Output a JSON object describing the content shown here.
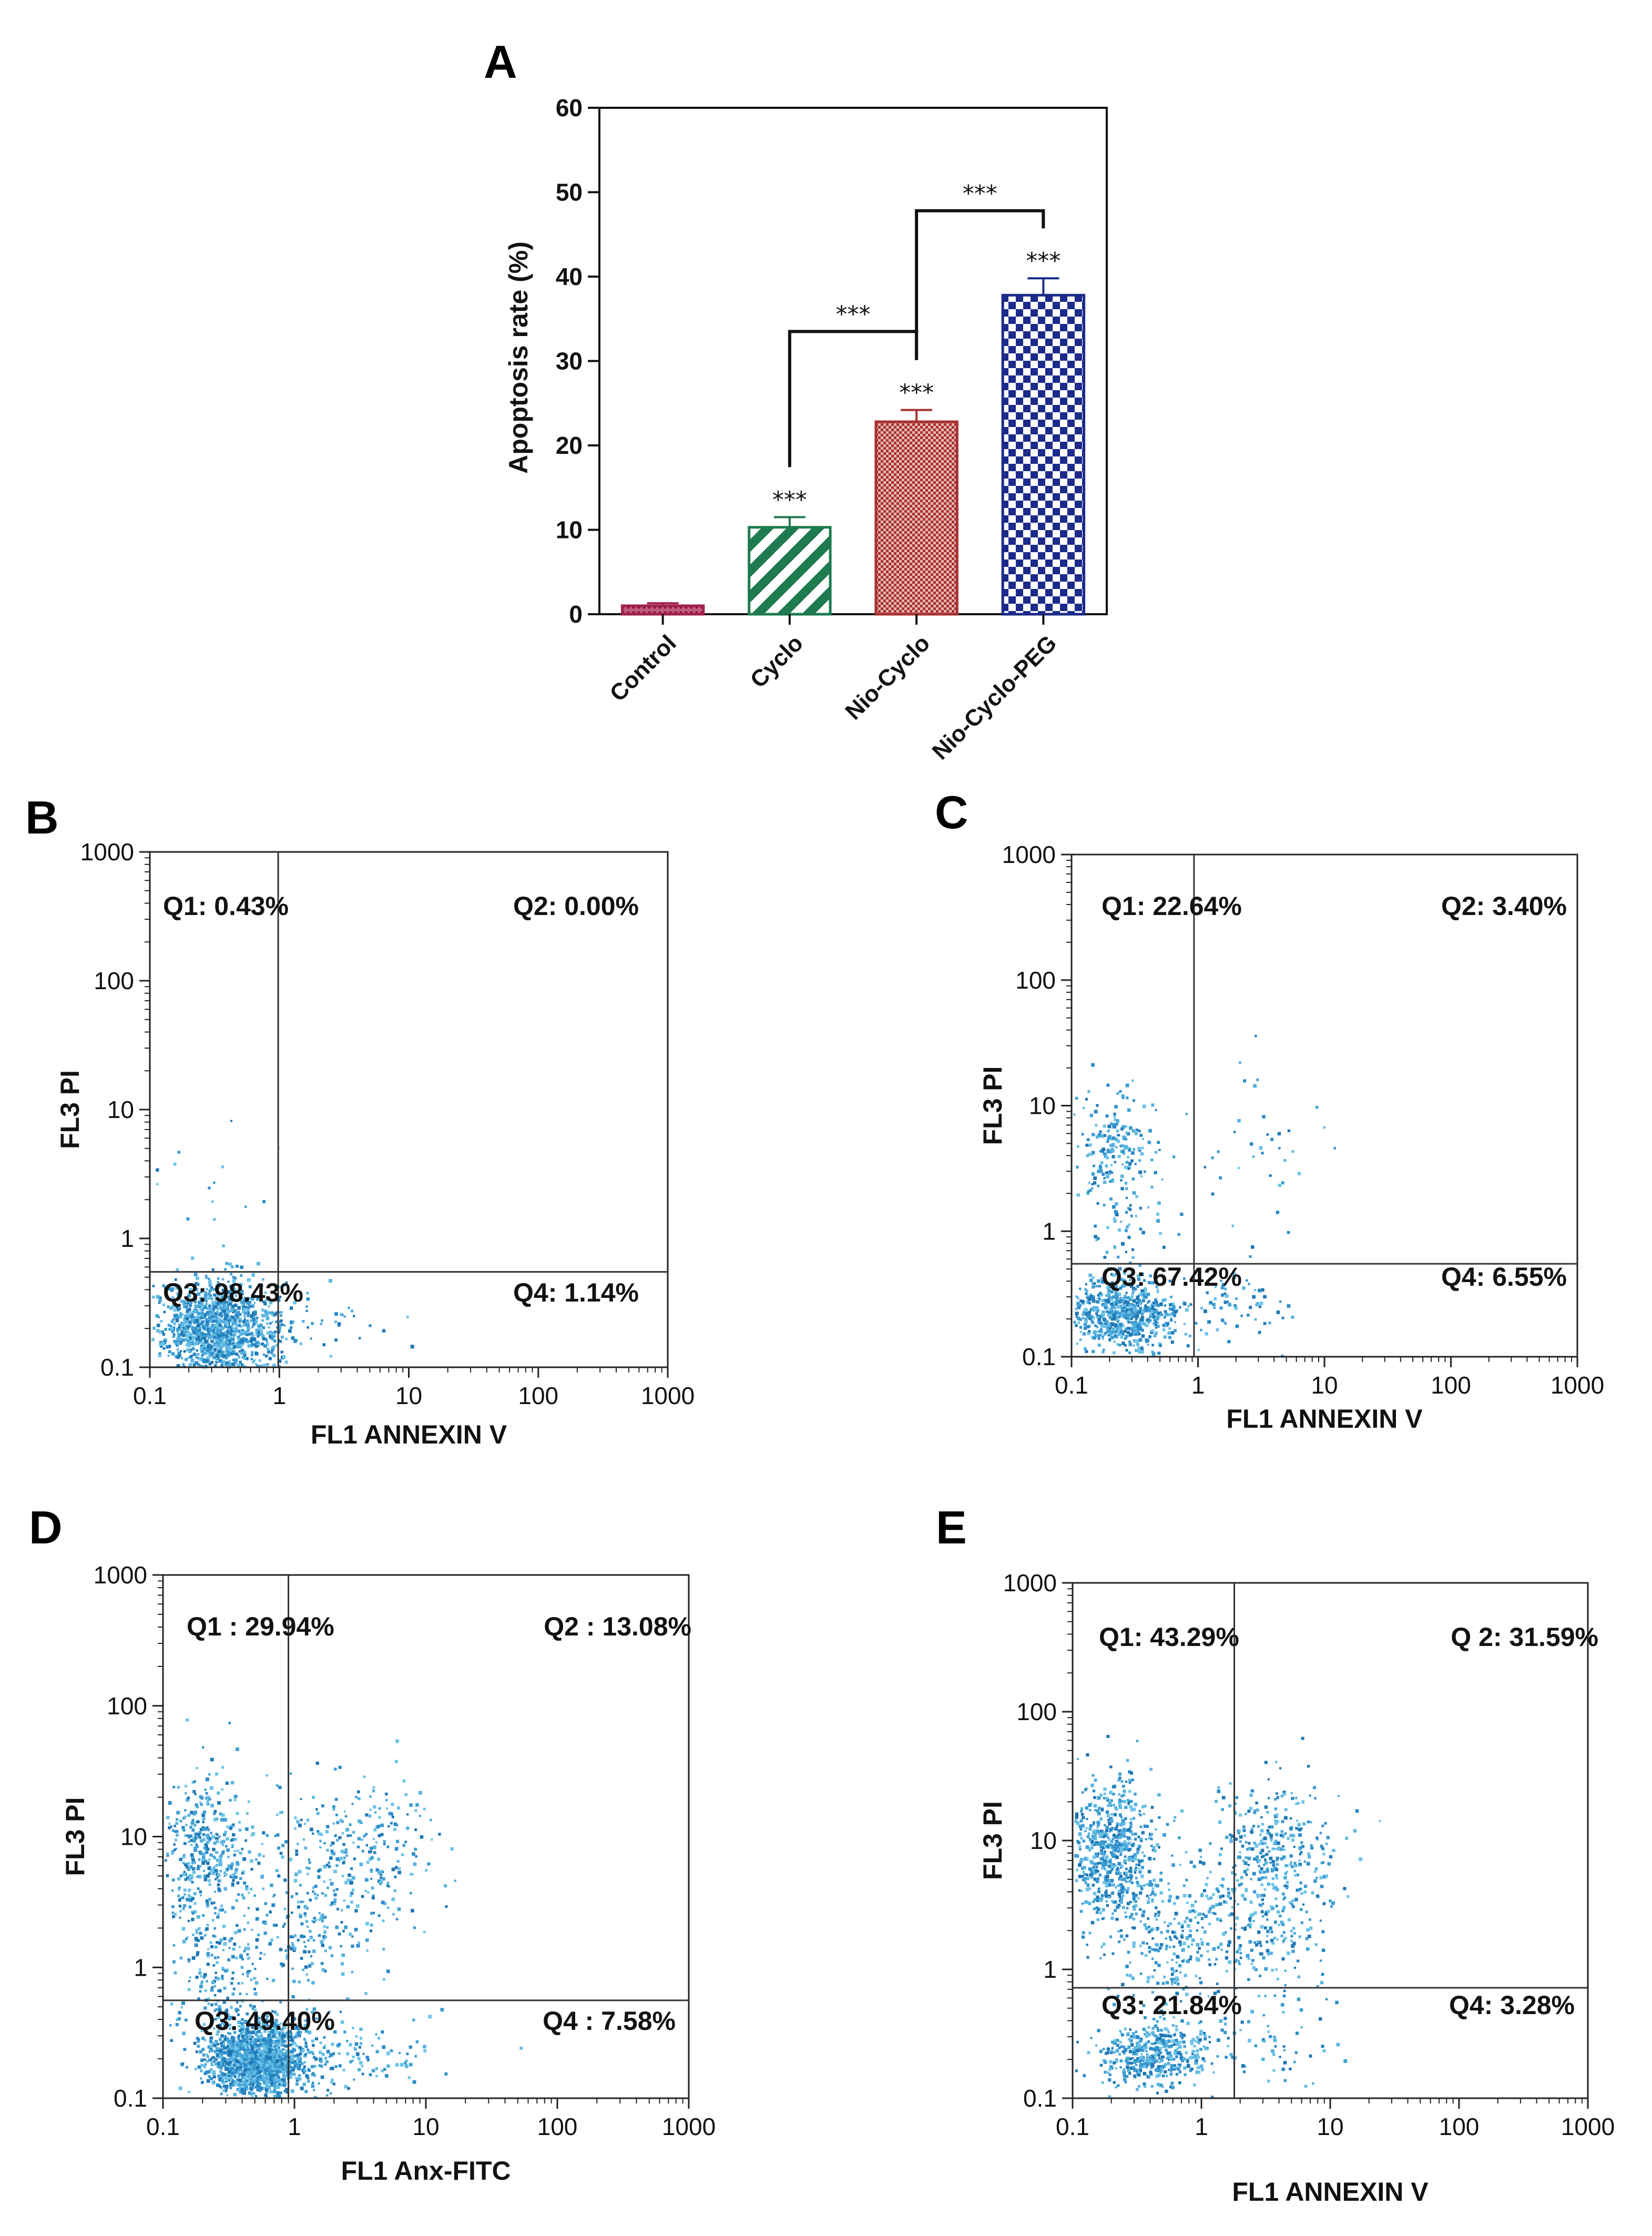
{
  "chart_data": [
    {
      "id": "A",
      "type": "bar",
      "panel_label": "A",
      "ylabel": "Apoptosis rate (%)",
      "ylim": [
        0,
        60
      ],
      "yticks": [
        "0",
        "10",
        "20",
        "30",
        "40",
        "50",
        "60"
      ],
      "categories": [
        "Control",
        "Cyclo",
        "Nio-Cyclo",
        "Nio-Cyclo-PEG"
      ],
      "values": [
        1.0,
        10.3,
        22.8,
        37.8
      ],
      "errors": [
        0.3,
        1.2,
        1.4,
        2.0
      ],
      "colors": [
        "#a1224e",
        "#1e7a4f",
        "#a8302f",
        "#1c2a8a"
      ],
      "patterns": [
        "dots",
        "diagonal",
        "fine-check",
        "checker"
      ],
      "bar_significance": [
        "",
        "***",
        "***",
        "***"
      ],
      "brackets": [
        {
          "from": "Cyclo",
          "to": "Nio-Cyclo",
          "y": 33.5,
          "label": "***"
        },
        {
          "from": "Nio-Cyclo",
          "to": "Nio-Cyclo-PEG",
          "y": 47.8,
          "label": "***"
        }
      ]
    },
    {
      "id": "B",
      "type": "scatter",
      "panel_label": "B",
      "xlabel": "FL1  ANNEXIN V",
      "ylabel": "FL3  PI",
      "xscale": "log",
      "yscale": "log",
      "xlim": [
        0.1,
        1000
      ],
      "ylim": [
        0.1,
        1000
      ],
      "xticks": [
        "0.1",
        "1",
        "10",
        "100",
        "1000"
      ],
      "yticks": [
        "0.1",
        "1",
        "10",
        "100",
        "1000"
      ],
      "gate": {
        "x": 0.98,
        "y": 0.55
      },
      "quadrants": {
        "q1": "Q1: 0.43%",
        "q2": "Q2: 0.00%",
        "q3": "Q3: 98.43%",
        "q4": "Q4: 1.14%"
      },
      "clusters": [
        {
          "x": 0.33,
          "y": 0.2,
          "sx": 0.22,
          "sy": 0.2,
          "n": 1300
        },
        {
          "x": 1.4,
          "y": 0.22,
          "sx": 0.3,
          "sy": 0.15,
          "n": 60
        },
        {
          "x": 0.28,
          "y": 3.0,
          "sx": 0.3,
          "sy": 0.35,
          "n": 15
        }
      ]
    },
    {
      "id": "C",
      "type": "scatter",
      "panel_label": "C",
      "xlabel": "FL1  ANNEXIN V",
      "ylabel": "FL3  PI",
      "xscale": "log",
      "yscale": "log",
      "xlim": [
        0.1,
        1000
      ],
      "ylim": [
        0.1,
        1000
      ],
      "xticks": [
        "0.1",
        "1",
        "10",
        "100",
        "1000"
      ],
      "yticks": [
        "0.1",
        "1",
        "10",
        "100",
        "1000"
      ],
      "gate": {
        "x": 0.93,
        "y": 0.55
      },
      "quadrants": {
        "q1": "Q1: 22.64%",
        "q2": "Q2: 3.40%",
        "q3": "Q3: 67.42%",
        "q4": "Q4: 6.55%"
      },
      "clusters": [
        {
          "x": 0.25,
          "y": 0.22,
          "sx": 0.2,
          "sy": 0.15,
          "n": 700
        },
        {
          "x": 0.22,
          "y": 5.0,
          "sx": 0.16,
          "sy": 0.22,
          "n": 160
        },
        {
          "x": 0.22,
          "y": 1.5,
          "sx": 0.2,
          "sy": 0.35,
          "n": 90
        },
        {
          "x": 2.0,
          "y": 0.25,
          "sx": 0.25,
          "sy": 0.15,
          "n": 70
        },
        {
          "x": 2.5,
          "y": 4.0,
          "sx": 0.3,
          "sy": 0.35,
          "n": 40
        }
      ]
    },
    {
      "id": "D",
      "type": "scatter",
      "panel_label": "D",
      "xlabel": "FL1  Anx-FITC",
      "ylabel": "FL3  PI",
      "xscale": "log",
      "yscale": "log",
      "xlim": [
        0.1,
        1000
      ],
      "ylim": [
        0.1,
        1000
      ],
      "xticks": [
        "0.1",
        "1",
        "10",
        "100",
        "1000"
      ],
      "yticks": [
        "0.1",
        "1",
        "10",
        "100",
        "1000"
      ],
      "gate": {
        "x": 0.9,
        "y": 0.56
      },
      "quadrants": {
        "q1": "Q1 : 29.94%",
        "q2": "Q2 : 13.08%",
        "q3": "Q3: 49.40%",
        "q4": "Q4 : 7.58%"
      },
      "clusters": [
        {
          "x": 0.5,
          "y": 0.2,
          "sx": 0.2,
          "sy": 0.15,
          "n": 1400
        },
        {
          "x": 0.2,
          "y": 8.0,
          "sx": 0.18,
          "sy": 0.28,
          "n": 420
        },
        {
          "x": 0.25,
          "y": 1.0,
          "sx": 0.22,
          "sy": 0.3,
          "n": 200
        },
        {
          "x": 3.0,
          "y": 8.0,
          "sx": 0.3,
          "sy": 0.3,
          "n": 260
        },
        {
          "x": 1.2,
          "y": 2.0,
          "sx": 0.25,
          "sy": 0.3,
          "n": 200
        },
        {
          "x": 2.5,
          "y": 0.22,
          "sx": 0.3,
          "sy": 0.15,
          "n": 130
        }
      ]
    },
    {
      "id": "E",
      "type": "scatter",
      "panel_label": "E",
      "xlabel": "FL1  ANNEXIN V",
      "ylabel": "FL3  PI",
      "xscale": "log",
      "yscale": "log",
      "xlim": [
        0.1,
        1000
      ],
      "ylim": [
        0.1,
        1000
      ],
      "xticks": [
        "0.1",
        "1",
        "10",
        "100",
        "1000"
      ],
      "yticks": [
        "0.1",
        "1",
        "10",
        "100",
        "1000"
      ],
      "gate": {
        "x": 1.8,
        "y": 0.72
      },
      "quadrants": {
        "q1": "Q1: 43.29%",
        "q2": "Q 2: 31.59%",
        "q3": "Q3: 21.84%",
        "q4": "Q4: 3.28%"
      },
      "clusters": [
        {
          "x": 0.2,
          "y": 8.0,
          "sx": 0.16,
          "sy": 0.3,
          "n": 650
        },
        {
          "x": 0.4,
          "y": 0.22,
          "sx": 0.22,
          "sy": 0.12,
          "n": 450
        },
        {
          "x": 0.6,
          "y": 1.6,
          "sx": 0.25,
          "sy": 0.3,
          "n": 260
        },
        {
          "x": 3.5,
          "y": 8.0,
          "sx": 0.25,
          "sy": 0.3,
          "n": 320
        },
        {
          "x": 3.5,
          "y": 2.0,
          "sx": 0.25,
          "sy": 0.3,
          "n": 180
        },
        {
          "x": 3.0,
          "y": 0.25,
          "sx": 0.3,
          "sy": 0.15,
          "n": 60
        }
      ]
    }
  ]
}
